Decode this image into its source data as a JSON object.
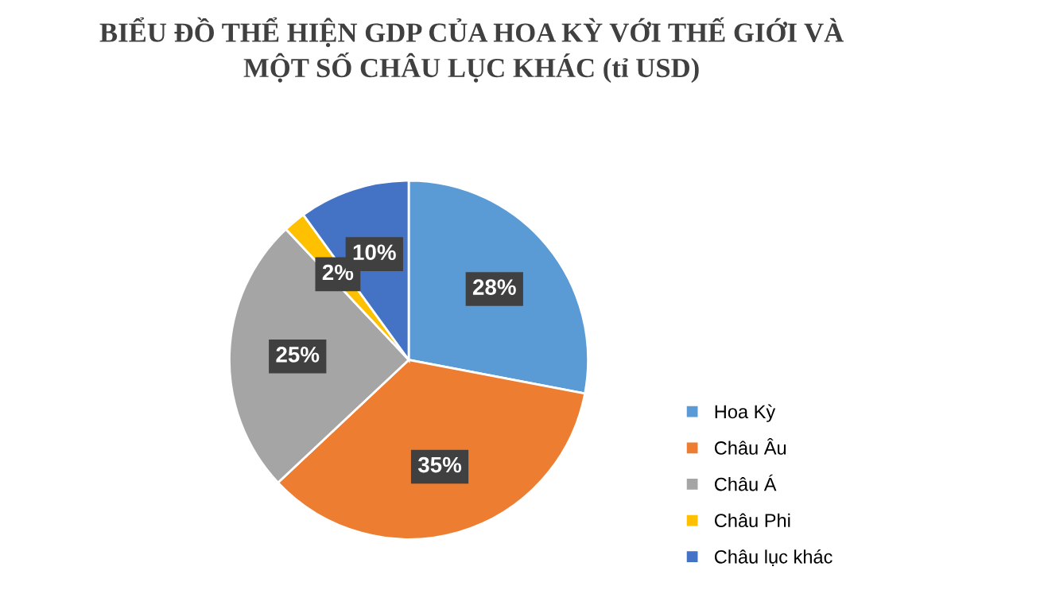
{
  "chart_data": {
    "type": "pie",
    "title": "BIỂU ĐỒ THỂ HIỆN GDP CỦA HOA KỲ VỚI THẾ GIỚI VÀ\nMỘT SỐ CHÂU LỤC KHÁC (tỉ USD)",
    "categories": [
      "Hoa Kỳ",
      "Châu Âu",
      "Châu Á",
      "Châu Phi",
      "Châu lục khác"
    ],
    "values": [
      28,
      35,
      25,
      2,
      10
    ],
    "colors": [
      "#5b9bd5",
      "#ed7d31",
      "#a5a5a5",
      "#ffc000",
      "#4472c4"
    ],
    "value_labels": [
      "28%",
      "35%",
      "25%",
      "2%",
      "10%"
    ],
    "legend": "bottom right"
  }
}
